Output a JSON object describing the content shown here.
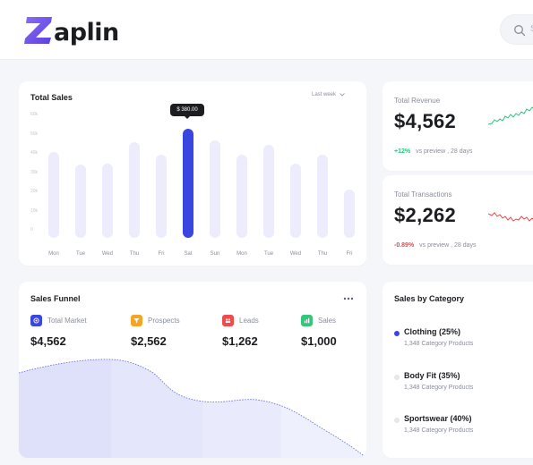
{
  "app": {
    "name": "Zaplin",
    "logo_letter": "Z",
    "logo_rest": "aplin",
    "logo_icon": "z-logo-icon"
  },
  "search": {
    "placeholder": "S",
    "icon": "search-icon"
  },
  "sales": {
    "title": "Total Sales",
    "period": "Last week",
    "tooltip": "$ 380.00",
    "active_index": 5,
    "chart_data": {
      "type": "bar",
      "categories": [
        "Mon",
        "Tue",
        "Wed",
        "Thu",
        "Fri",
        "Sat",
        "Sun",
        "Mon",
        "Tue",
        "Wed",
        "Thu",
        "Fri"
      ],
      "values": [
        300,
        255,
        260,
        335,
        290,
        380,
        340,
        290,
        325,
        260,
        290,
        170
      ],
      "y_ticks": [
        "60k",
        "50k",
        "40k",
        "30k",
        "20k",
        "10k",
        "0"
      ],
      "ylim": [
        0,
        400
      ],
      "grid": false,
      "accent": "#3a46e0",
      "bar_color": "#ececfd"
    }
  },
  "revenue": {
    "label": "Total Revenue",
    "value": "$4,562",
    "change": "+12%",
    "note": "vs preview , 28 days",
    "color": "#2ec27e"
  },
  "transactions": {
    "label": "Total Transactions",
    "value": "$2,262",
    "change": "-0.89%",
    "note": "vs preview , 28 days",
    "color": "#e5484d"
  },
  "funnel": {
    "title": "Sales Funnel",
    "items": [
      {
        "label": "Total Market",
        "value": "$4,562",
        "color": "#3a46e0",
        "icon": "target-icon"
      },
      {
        "label": "Prospects",
        "value": "$2,562",
        "color": "#f5a524",
        "icon": "filter-icon"
      },
      {
        "label": "Leads",
        "value": "$1,262",
        "color": "#f04a4a",
        "icon": "people-icon"
      },
      {
        "label": "Sales",
        "value": "$1,000",
        "color": "#34c77b",
        "icon": "chart-icon"
      }
    ]
  },
  "category": {
    "title": "Sales by Category",
    "items": [
      {
        "name": "Clothing (25%)",
        "sub": "1,348 Category Products",
        "color": "#3a46e0"
      },
      {
        "name": "Body Fit (35%)",
        "sub": "1,348 Category Products",
        "color": "#e6e7ee"
      },
      {
        "name": "Sportswear (40%)",
        "sub": "1,348 Category Products",
        "color": "#e6e7ee"
      }
    ]
  }
}
